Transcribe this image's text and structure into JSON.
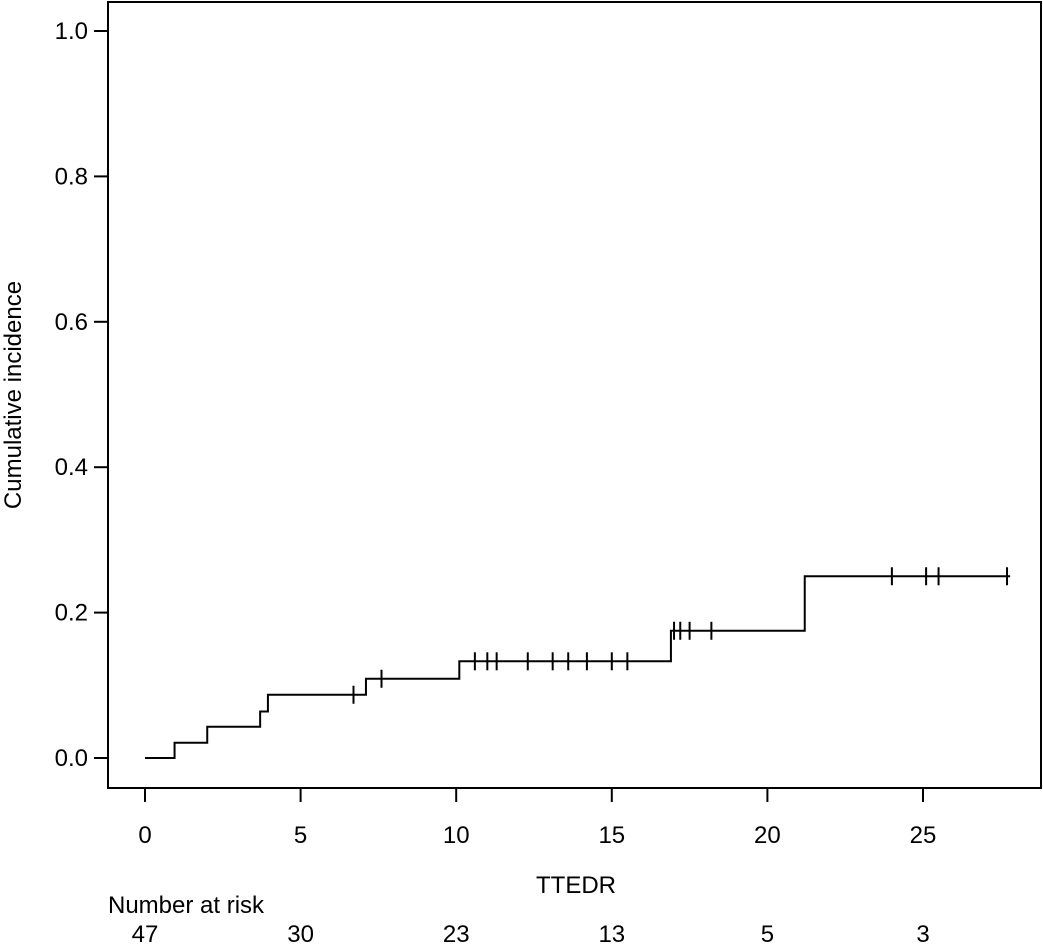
{
  "chart_data": {
    "type": "line",
    "subtype": "step",
    "xlabel": "TTEDR",
    "ylabel": "Cumulative incidence",
    "xlim": [
      0,
      28
    ],
    "ylim": [
      0,
      1.0
    ],
    "x_ticks": [
      0,
      5,
      10,
      15,
      20,
      25
    ],
    "y_ticks": [
      "0.0",
      "0.2",
      "0.4",
      "0.6",
      "0.8",
      "1.0"
    ],
    "grid": false,
    "line_color": "#000000",
    "step_points": [
      {
        "x": 0,
        "y": 0.0
      },
      {
        "x": 0.95,
        "y": 0.021
      },
      {
        "x": 2.0,
        "y": 0.043
      },
      {
        "x": 3.7,
        "y": 0.064
      },
      {
        "x": 3.95,
        "y": 0.087
      },
      {
        "x": 7.1,
        "y": 0.109
      },
      {
        "x": 10.1,
        "y": 0.133
      },
      {
        "x": 16.9,
        "y": 0.175
      },
      {
        "x": 21.2,
        "y": 0.25
      },
      {
        "x": 27.8,
        "y": 0.25
      }
    ],
    "censor_times": [
      6.7,
      7.6,
      10.6,
      11.0,
      11.3,
      12.3,
      13.1,
      13.6,
      14.2,
      15.0,
      15.5,
      17.0,
      17.2,
      17.5,
      18.2,
      24.0,
      25.1,
      25.5,
      27.7
    ],
    "risk_table": {
      "title": "Number at risk",
      "times": [
        0,
        5,
        10,
        15,
        20,
        25
      ],
      "values": [
        "47",
        "30",
        "23",
        "13",
        "5",
        "3"
      ]
    }
  }
}
